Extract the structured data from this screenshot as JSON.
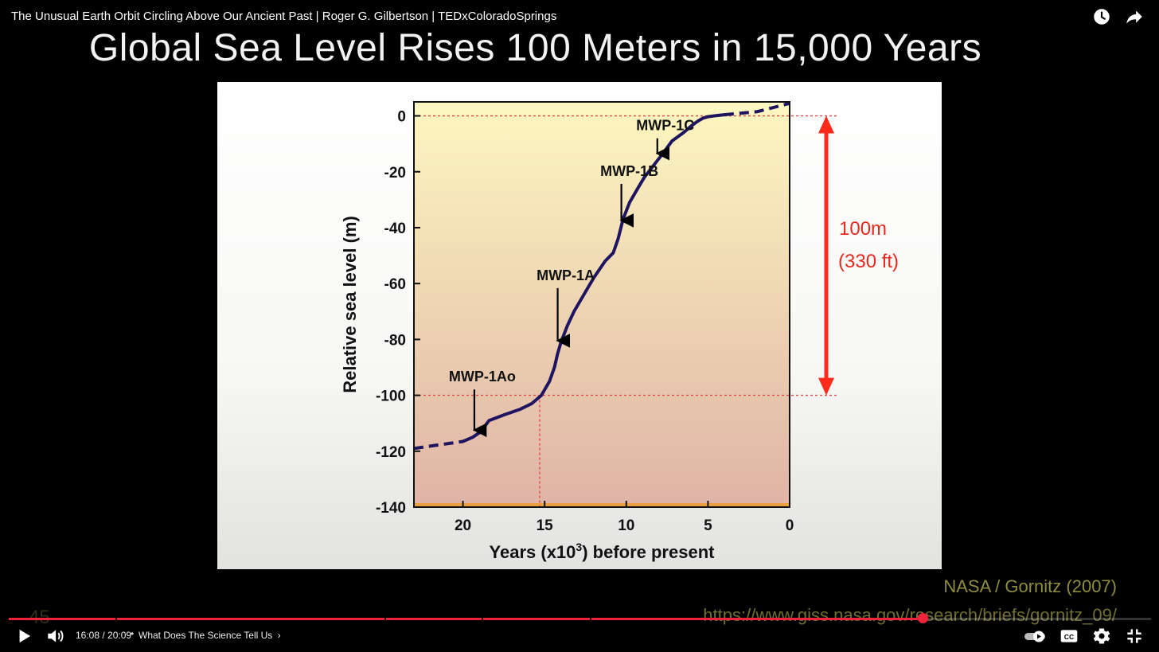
{
  "video": {
    "title": "The Unusual Earth Orbit Circling Above Our Ancient Past | Roger G. Gilbertson | TEDxColoradoSprings"
  },
  "slide": {
    "title": "Global Sea Level Rises 100 Meters in 15,000 Years",
    "credit": "NASA / Gornitz (2007)",
    "credit_url": "https://www.giss.nasa.gov/research/briefs/gornitz_09/",
    "slide_number": "45",
    "annotation_line1": "100m",
    "annotation_line2": "(330 ft)"
  },
  "player": {
    "time": "16:08 / 20:09",
    "separator": "•",
    "chapter": "What Does The Science Tell Us",
    "progress_fraction": 0.8,
    "accent_color": "#f0233b"
  },
  "icons": {
    "watch_later": "clock-icon",
    "share": "share-arrow-icon",
    "play": "play-icon",
    "volume": "volume-icon",
    "autoplay": "autoplay-toggle-icon",
    "captions": "cc-icon",
    "settings": "gear-icon",
    "fullscreen_exit": "exit-fullscreen-icon"
  },
  "chart_data": {
    "type": "line",
    "title": "",
    "xlabel": "Years (x10",
    "xlabel_sup": "3",
    "xlabel_tail": ") before present",
    "ylabel": "Relative sea level (m)",
    "xlim": [
      23,
      0
    ],
    "ylim": [
      -140,
      5
    ],
    "x_ticks": [
      20,
      15,
      10,
      5,
      0
    ],
    "y_ticks": [
      0,
      -20,
      -40,
      -60,
      -80,
      -100,
      -120,
      -140
    ],
    "reference_lines": [
      0,
      -100
    ],
    "reference_x": 15.3,
    "grid": false,
    "background_gradient": [
      "#fdf7c0",
      "#dfb3a6"
    ],
    "line_color": "#1e1460",
    "series": [
      {
        "x": [
          20,
          19.4,
          18.9,
          18.4,
          17.5,
          16.5,
          15.8,
          15.2,
          14.7,
          14.4,
          14.2,
          14.0,
          13.6,
          13.2,
          12.6,
          12.0,
          11.3,
          10.8,
          10.5,
          10.2,
          9.8,
          9.3,
          8.9,
          8.5,
          8.1,
          7.7,
          7.2,
          6.5,
          6.0,
          5.6,
          5.3,
          5.0,
          4.5,
          4.0
        ],
        "y": [
          -116.5,
          -115,
          -113,
          -109,
          -107,
          -105,
          -103,
          -100,
          -95,
          -90,
          -85,
          -81,
          -75,
          -70,
          -64,
          -58,
          -52,
          -49,
          -44,
          -37,
          -31,
          -26,
          -22,
          -19,
          -16,
          -13,
          -9,
          -6,
          -3.5,
          -1.8,
          -0.8,
          -0.3,
          0.1,
          0.4
        ]
      }
    ],
    "dashed_segments": [
      {
        "x": [
          23,
          20
        ],
        "y": [
          -119,
          -116.5
        ]
      },
      {
        "x": [
          4.0,
          2.0,
          0.0
        ],
        "y": [
          0.4,
          1.5,
          4.5
        ]
      }
    ],
    "annotations": [
      {
        "label": "MWP-1Ao",
        "x": 19.3,
        "y": -115
      },
      {
        "label": "MWP-1A",
        "x": 14.2,
        "y": -83
      },
      {
        "label": "MWP-1B",
        "x": 10.3,
        "y": -40
      },
      {
        "label": "MWP-1C",
        "x": 8.1,
        "y": -16
      }
    ],
    "range_arrow": {
      "from": 0,
      "to": -100,
      "color": "#ff2a1a"
    }
  }
}
